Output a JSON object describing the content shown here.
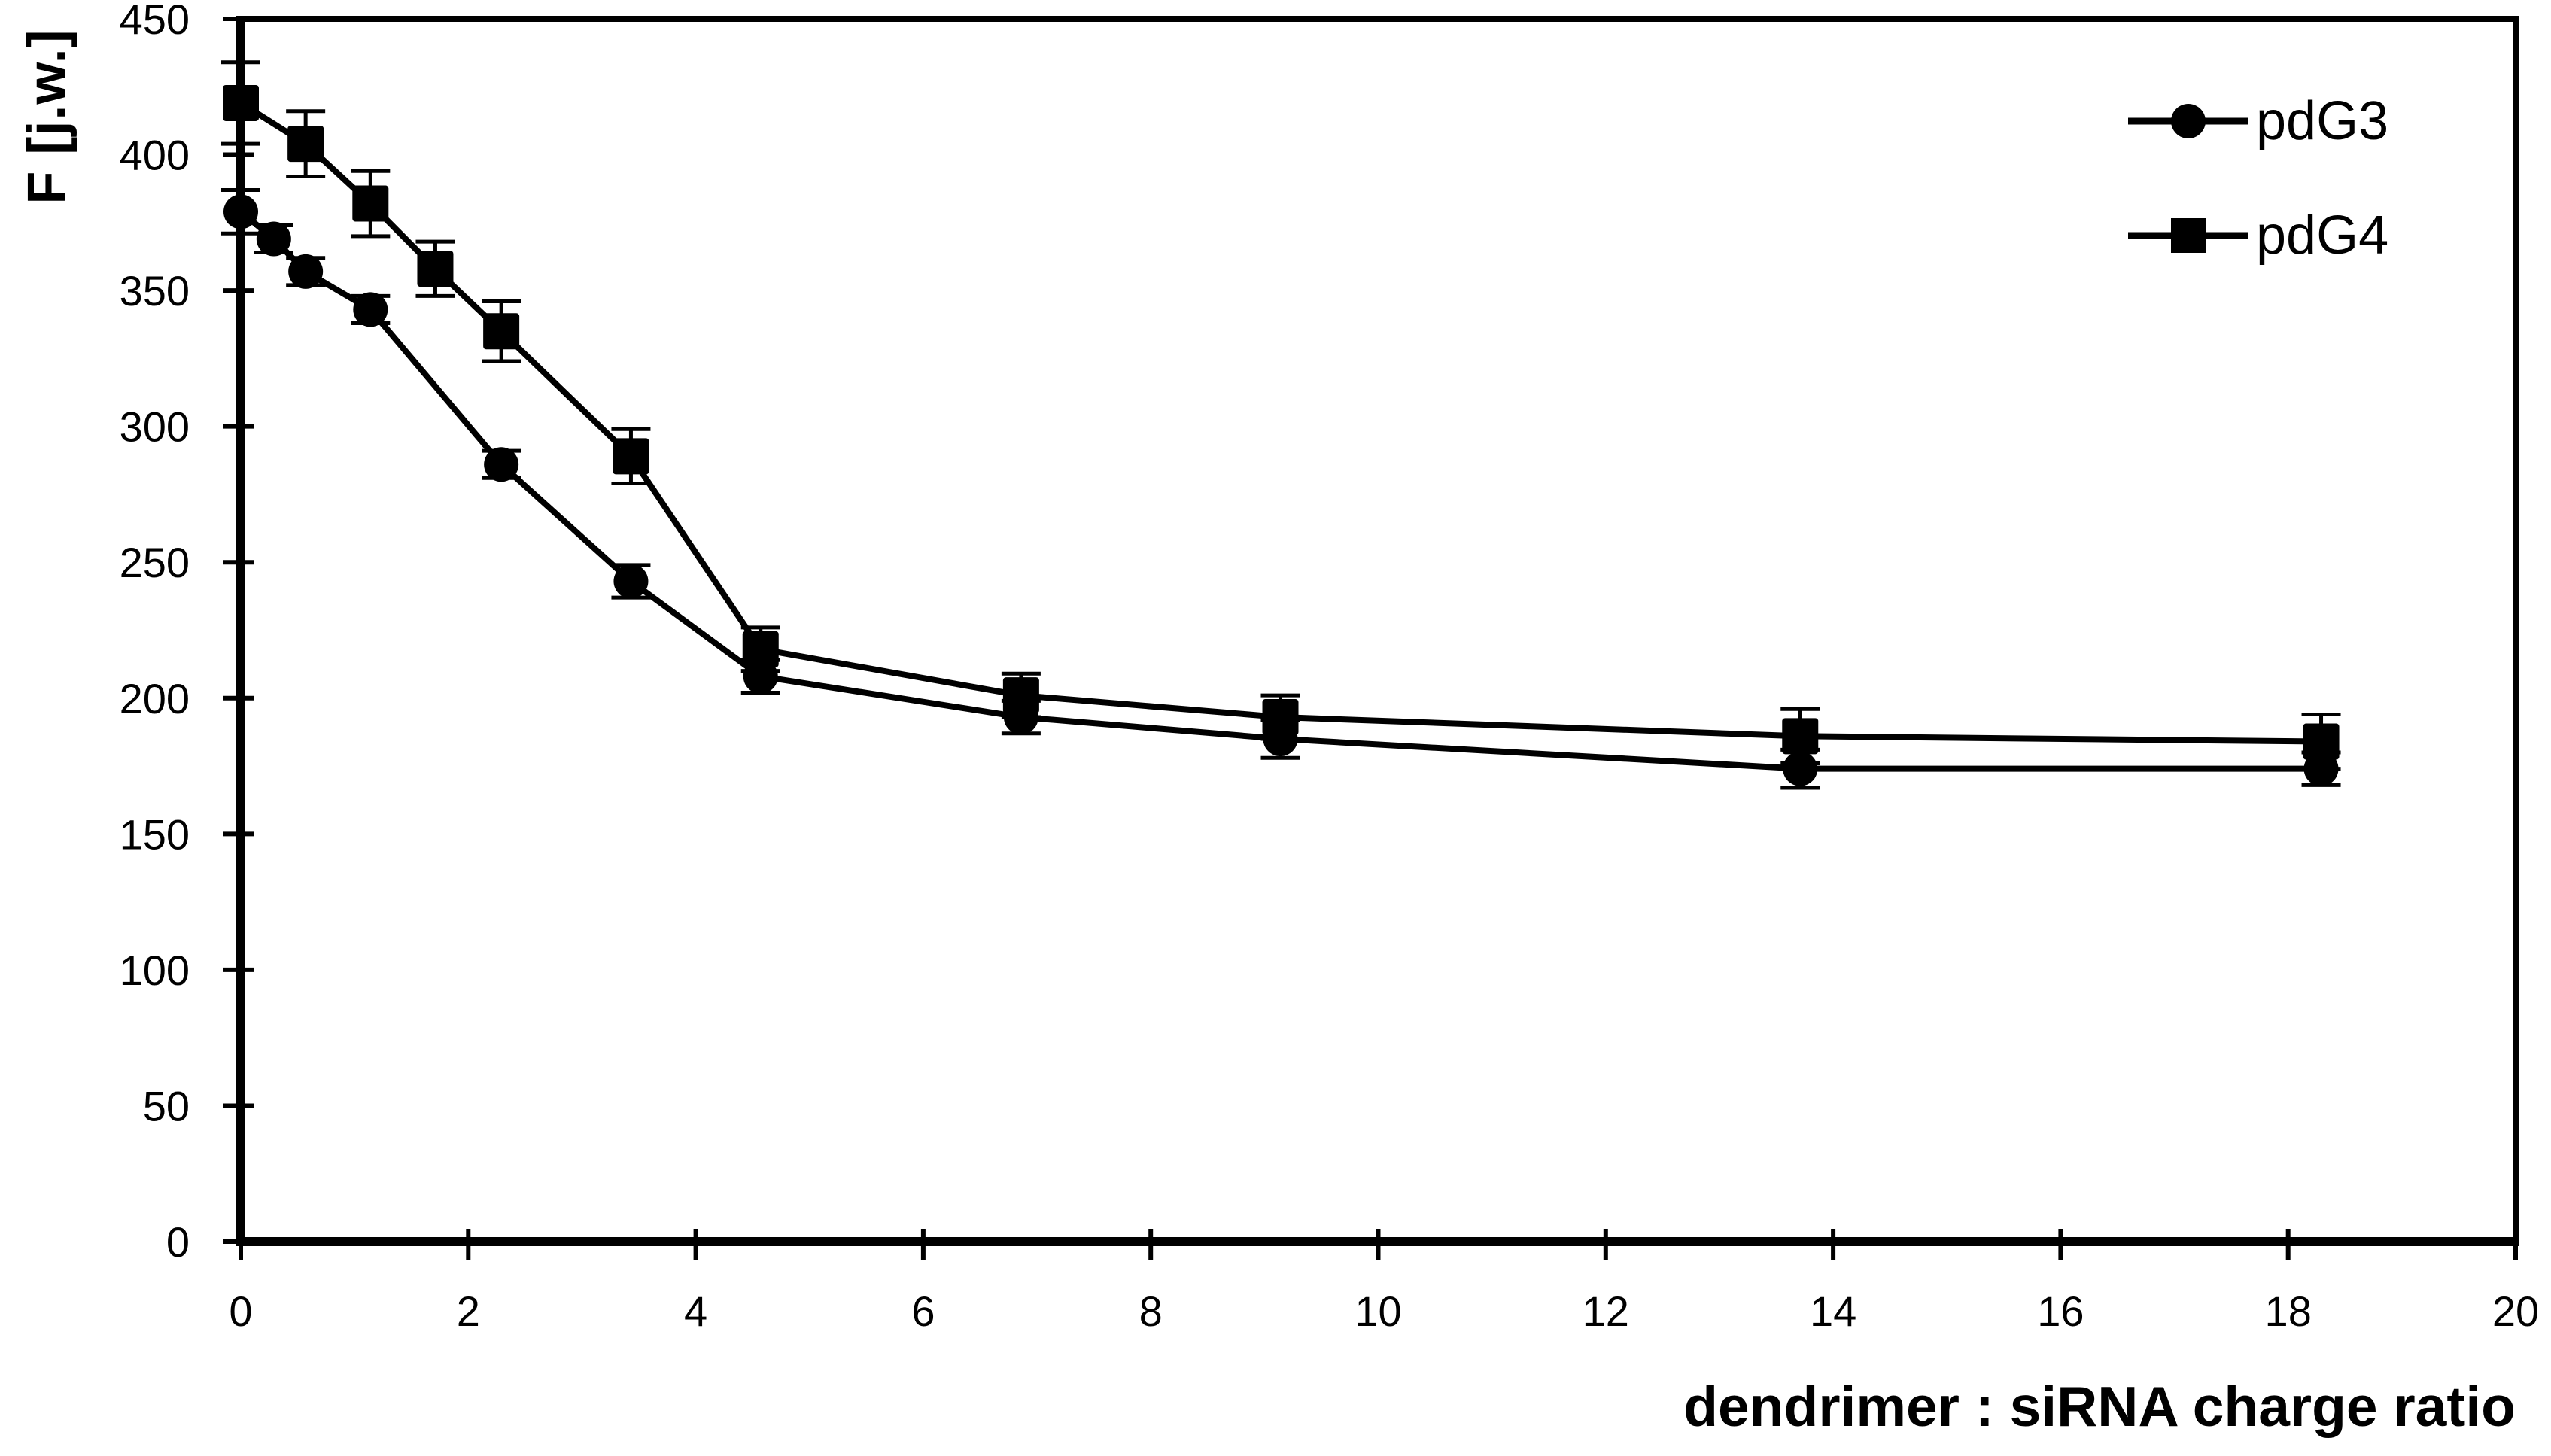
{
  "figure": {
    "background_color": "#ffffff",
    "ink_color": "#000000"
  },
  "y_axis": {
    "title": "F [j.w.]",
    "min": 0,
    "max": 450,
    "tick_step": 50,
    "tick_labels": [
      "0",
      "50",
      "100",
      "150",
      "200",
      "250",
      "300",
      "350",
      "400",
      "450"
    ]
  },
  "x_axis": {
    "title": "dendrimer : siRNA charge ratio",
    "min": 0,
    "max": 20,
    "tick_step": 2,
    "tick_labels": [
      "0",
      "2",
      "4",
      "6",
      "8",
      "10",
      "12",
      "14",
      "16",
      "18",
      "20"
    ]
  },
  "legend": {
    "position": "top-right",
    "items": [
      {
        "label": "pdG3",
        "marker": "circle"
      },
      {
        "label": "pdG4",
        "marker": "square"
      }
    ]
  },
  "chart_data": {
    "type": "line",
    "title": "",
    "xlabel": "dendrimer : siRNA charge ratio",
    "ylabel": "F [j.w.]",
    "xlim": [
      0,
      20
    ],
    "ylim": [
      0,
      450
    ],
    "grid": false,
    "legend_position": "top-right",
    "series": [
      {
        "name": "pdG3",
        "marker": "circle",
        "color": "#000000",
        "x": [
          0,
          0.29,
          0.57,
          1.14,
          2.29,
          3.43,
          4.57,
          6.86,
          9.14,
          13.71,
          18.29
        ],
        "y": [
          379,
          369,
          357,
          343,
          286,
          243,
          208,
          193,
          185,
          174,
          174
        ],
        "yerr": [
          8,
          5,
          5,
          5,
          5,
          6,
          6,
          6,
          7,
          7,
          6
        ]
      },
      {
        "name": "pdG4",
        "marker": "square",
        "color": "#000000",
        "x": [
          0,
          0.57,
          1.14,
          1.71,
          2.29,
          3.43,
          4.57,
          6.86,
          9.14,
          13.71,
          18.29
        ],
        "y": [
          419,
          404,
          382,
          358,
          335,
          289,
          218,
          201,
          193,
          186,
          184
        ],
        "yerr": [
          15,
          12,
          12,
          10,
          11,
          10,
          8,
          8,
          8,
          10,
          10
        ]
      }
    ]
  }
}
